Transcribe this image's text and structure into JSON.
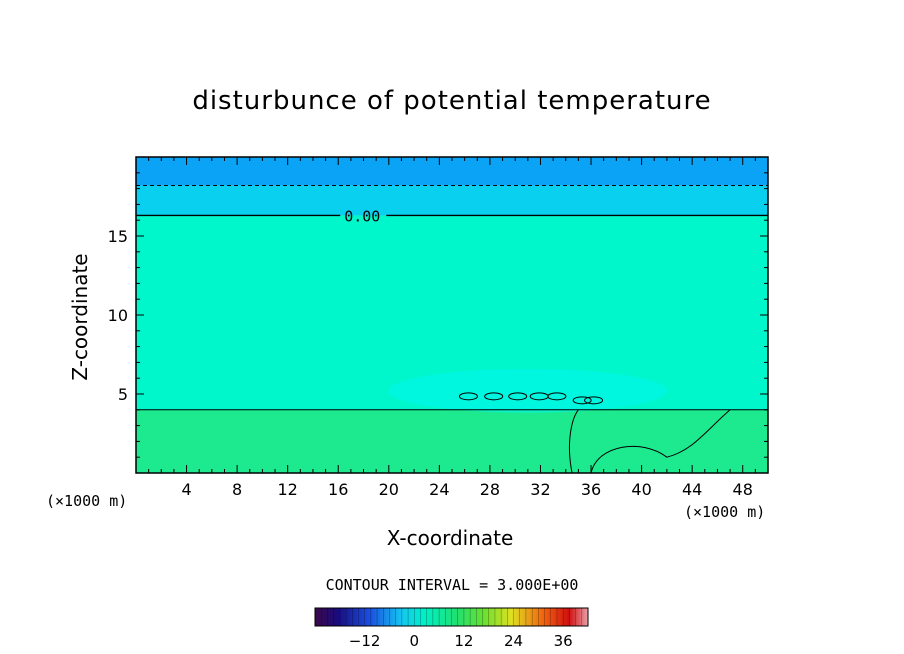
{
  "chart_data": {
    "type": "heatmap",
    "title": "disturbunce of potential temperature",
    "xlabel": "X-coordinate",
    "ylabel": "Z-coordinate",
    "x_unit": "(×1000 m)",
    "y_unit": "(×1000 m)",
    "xlim": [
      0,
      50
    ],
    "ylim": [
      0,
      20
    ],
    "x_ticks": [
      4,
      8,
      12,
      16,
      20,
      24,
      28,
      32,
      36,
      40,
      44,
      48
    ],
    "y_ticks": [
      5,
      10,
      15
    ],
    "contour_label": "0.00",
    "contour_interval": "CONTOUR INTERVAL = 3.000E+00",
    "colorbar": {
      "range": [
        -24,
        42
      ],
      "ticks": [
        -12,
        0,
        12,
        24,
        36
      ]
    },
    "bands": [
      {
        "z_from": 18.2,
        "z_to": 20.0,
        "value": -6,
        "color": "#0aa3f6"
      },
      {
        "z_from": 16.3,
        "z_to": 18.2,
        "value": -3,
        "color": "#08d0ee"
      },
      {
        "z_from": 4.0,
        "z_to": 16.3,
        "value": 0,
        "color": "#00f7cc"
      },
      {
        "z_from": 0.0,
        "z_to": 4.0,
        "value": 3,
        "color": "#1de98f"
      }
    ],
    "contours": [
      {
        "z": 18.2,
        "style": "dashed"
      },
      {
        "z": 16.3,
        "style": "solid",
        "label": "0.00"
      },
      {
        "z": 4.0,
        "style": "solid"
      }
    ]
  }
}
